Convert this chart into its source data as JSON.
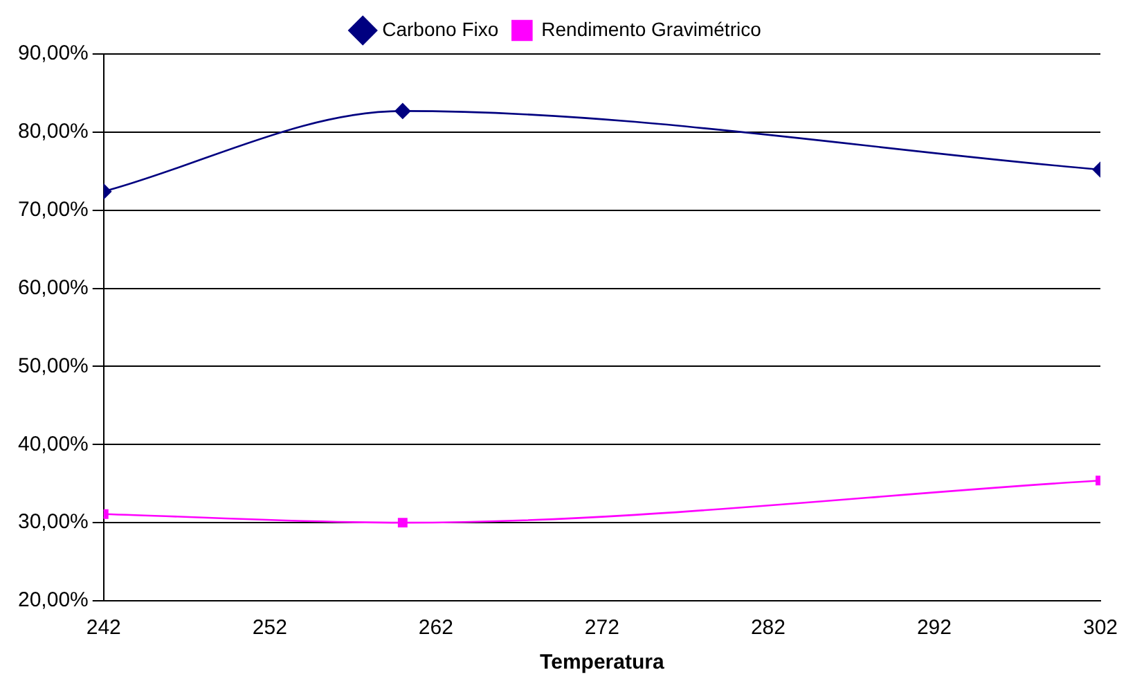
{
  "chart_data": {
    "type": "line",
    "xlabel": "Temperatura",
    "x": [
      242,
      260,
      302
    ],
    "series": [
      {
        "name": "Carbono Fixo",
        "color": "#000080",
        "values": [
          72.4,
          82.7,
          75.2
        ],
        "marker": "diamond"
      },
      {
        "name": "Rendimento Gravimétrico",
        "color": "#ff00ff",
        "values": [
          31.1,
          30.0,
          35.4
        ],
        "marker": "square"
      }
    ],
    "xlim": [
      242,
      302
    ],
    "xticks": [
      242,
      252,
      262,
      272,
      282,
      292,
      302
    ],
    "ylim": [
      20,
      90
    ],
    "yticks": [
      {
        "value": 20,
        "label": "20,00%"
      },
      {
        "value": 30,
        "label": "30,00%"
      },
      {
        "value": 40,
        "label": "40,00%"
      },
      {
        "value": 50,
        "label": "50,00%"
      },
      {
        "value": 60,
        "label": "60,00%"
      },
      {
        "value": 70,
        "label": "70,00%"
      },
      {
        "value": 80,
        "label": "80,00%"
      },
      {
        "value": 90,
        "label": "90,00%"
      }
    ],
    "grid": "y",
    "legend": "top",
    "line_style": "solid"
  }
}
